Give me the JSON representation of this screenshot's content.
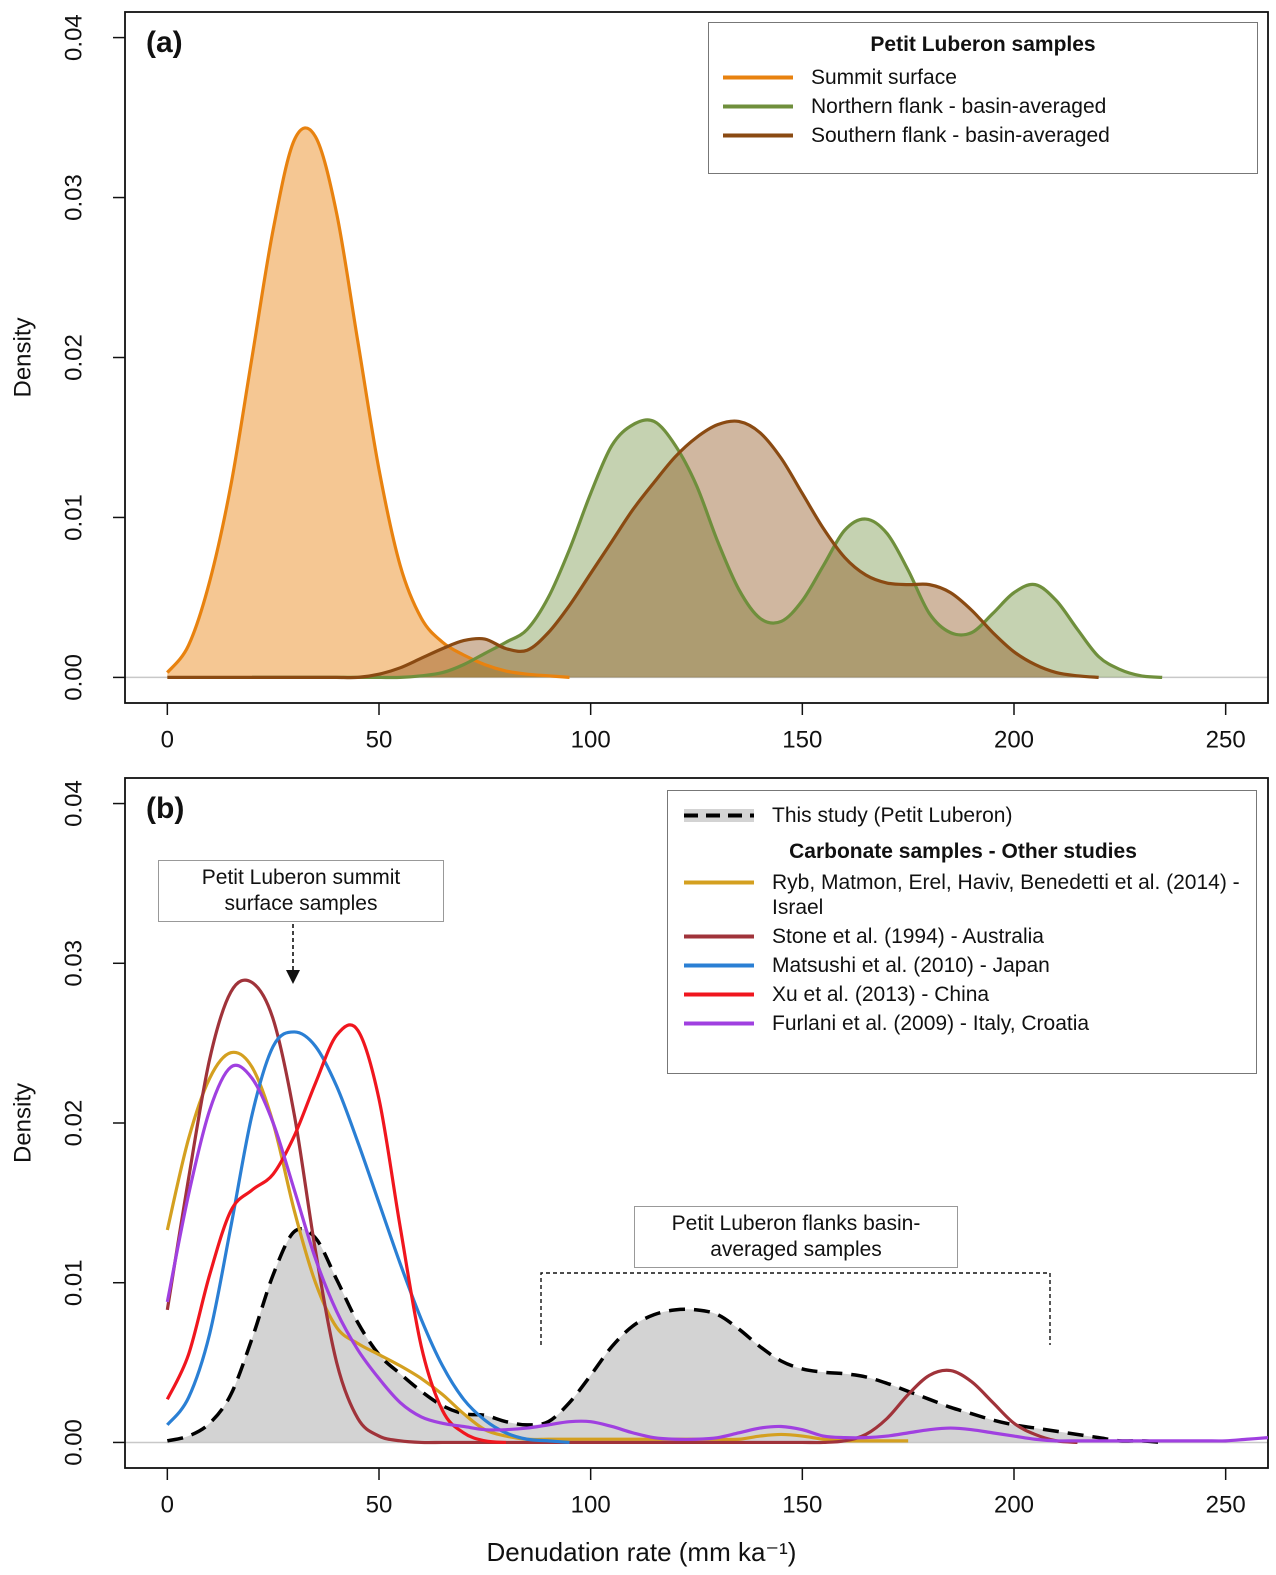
{
  "chart_data": [
    {
      "type": "area",
      "panel_label": "(a)",
      "y_label": "Density",
      "legend_title": "Petit Luberon samples",
      "x": [
        0,
        5,
        10,
        15,
        20,
        25,
        30,
        35,
        40,
        45,
        50,
        55,
        60,
        65,
        70,
        75,
        80,
        85,
        90,
        95,
        100,
        105,
        110,
        115,
        120,
        125,
        130,
        135,
        140,
        145,
        150,
        155,
        160,
        165,
        170,
        175,
        180,
        185,
        190,
        195,
        200,
        205,
        210,
        215,
        220,
        225,
        230,
        235
      ],
      "series": [
        {
          "name": "Summit surface",
          "color": "#e8820f",
          "fill": "#e8820f",
          "fill_opacity": 0.45,
          "values": [
            0.0003,
            0.002,
            0.006,
            0.012,
            0.02,
            0.028,
            0.0336,
            0.0338,
            0.029,
            0.021,
            0.013,
            0.007,
            0.0037,
            0.0022,
            0.0014,
            0.0008,
            0.0004,
            0.0002,
            0.0001,
            0,
            null,
            null,
            null,
            null,
            null,
            null,
            null,
            null,
            null,
            null,
            null,
            null,
            null,
            null,
            null,
            null,
            null,
            null,
            null,
            null,
            null,
            null,
            null,
            null,
            null,
            null,
            null,
            null
          ]
        },
        {
          "name": "Northern flank - basin-averaged",
          "color": "#6f8f3c",
          "fill": "#6f8f3c",
          "fill_opacity": 0.4,
          "values": [
            null,
            null,
            null,
            null,
            0,
            0,
            0,
            0,
            0,
            0,
            0,
            0,
            0.0001,
            0.0003,
            0.0008,
            0.0015,
            0.0022,
            0.003,
            0.005,
            0.008,
            0.0115,
            0.0145,
            0.0158,
            0.016,
            0.0145,
            0.012,
            0.0085,
            0.0055,
            0.0037,
            0.0035,
            0.0048,
            0.007,
            0.0092,
            0.0099,
            0.009,
            0.0067,
            0.004,
            0.0028,
            0.0028,
            0.004,
            0.0053,
            0.0058,
            0.0048,
            0.003,
            0.0013,
            0.0005,
            0.0001,
            0
          ]
        },
        {
          "name": "Southern flank - basin-averaged",
          "color": "#8a4a12",
          "fill": "#8a4a12",
          "fill_opacity": 0.4,
          "values": [
            0,
            0,
            0,
            0,
            0,
            0,
            0,
            0,
            0,
            0,
            0.0002,
            0.0006,
            0.0012,
            0.0018,
            0.0023,
            0.0024,
            0.0018,
            0.0017,
            0.0028,
            0.0045,
            0.0065,
            0.0085,
            0.0105,
            0.0122,
            0.0138,
            0.015,
            0.0158,
            0.016,
            0.0153,
            0.0137,
            0.0115,
            0.0093,
            0.0075,
            0.0064,
            0.0059,
            0.0058,
            0.0058,
            0.0053,
            0.0042,
            0.0028,
            0.0016,
            0.0008,
            0.0003,
            0.0001,
            0,
            null,
            null,
            null
          ]
        }
      ],
      "xlim": [
        -10,
        260
      ],
      "ylim": [
        -0.0016,
        0.0416
      ],
      "xticks": [
        0,
        50,
        100,
        150,
        200,
        250
      ],
      "yticks": [
        {
          "value": 0,
          "label": "0.00"
        },
        0.01,
        0.02,
        0.03,
        0.04
      ]
    },
    {
      "type": "area",
      "panel_label": "(b)",
      "y_label": "Density",
      "x_label": "Denudation rate (mm ka⁻¹)",
      "legend_group_title": "Carbonate samples - Other studies",
      "x": [
        0,
        5,
        10,
        15,
        20,
        25,
        30,
        35,
        40,
        45,
        50,
        55,
        60,
        65,
        70,
        75,
        80,
        85,
        90,
        95,
        100,
        105,
        110,
        115,
        120,
        125,
        130,
        135,
        140,
        145,
        150,
        155,
        160,
        165,
        170,
        175,
        180,
        185,
        190,
        195,
        200,
        205,
        210,
        215,
        220,
        225,
        230,
        235,
        240,
        245,
        250,
        255,
        260
      ],
      "series": [
        {
          "name": "This study (Petit Luberon)",
          "color": "#000000",
          "dashed": true,
          "fill": "#c8c8c8",
          "fill_opacity": 0.8,
          "values": [
            0.0001,
            0.0004,
            0.0012,
            0.003,
            0.0065,
            0.0105,
            0.0132,
            0.0128,
            0.0102,
            0.0075,
            0.0055,
            0.0043,
            0.0032,
            0.0023,
            0.0018,
            0.0017,
            0.0013,
            0.0011,
            0.0013,
            0.0025,
            0.0042,
            0.006,
            0.0073,
            0.008,
            0.0083,
            0.0083,
            0.008,
            0.0071,
            0.006,
            0.0051,
            0.0046,
            0.0044,
            0.0043,
            0.0041,
            0.0037,
            0.0032,
            0.0027,
            0.0022,
            0.0018,
            0.0014,
            0.0011,
            0.0009,
            0.0007,
            0.0005,
            0.0003,
            0.0001,
            0.0001,
            0,
            null,
            null,
            null,
            null,
            null
          ]
        },
        {
          "name": "Ryb, Matmon, Erel, Haviv, Benedetti et al. (2014) - Israel",
          "color": "#d4a020",
          "values": [
            0.0133,
            0.019,
            0.0228,
            0.0244,
            0.0235,
            0.02,
            0.0145,
            0.01,
            0.0072,
            0.0062,
            0.0055,
            0.0048,
            0.004,
            0.003,
            0.0018,
            0.0008,
            0.0004,
            0.0002,
            0.0002,
            0.0002,
            0.0002,
            0.0002,
            0.0002,
            0.0002,
            0.0002,
            0.0002,
            0.0002,
            0.0002,
            0.0004,
            0.0005,
            0.0004,
            0.0002,
            0.0001,
            0.0001,
            0.0001,
            0.0001,
            null,
            null,
            null,
            null,
            null,
            null,
            null,
            null,
            null,
            null,
            null,
            null,
            null,
            null,
            null,
            null,
            null
          ]
        },
        {
          "name": "Stone et al. (1994) - Australia",
          "color": "#a0333a",
          "values": [
            0.0083,
            0.0165,
            0.024,
            0.0282,
            0.0288,
            0.0265,
            0.0205,
            0.012,
            0.005,
            0.0015,
            0.0004,
            0.0001,
            0,
            0,
            0,
            0,
            0,
            0,
            0,
            0,
            0,
            0,
            0,
            0,
            0,
            0,
            0,
            0,
            0,
            0,
            0,
            0,
            0.0001,
            0.0005,
            0.0015,
            0.003,
            0.0042,
            0.0045,
            0.0038,
            0.0025,
            0.0012,
            0.0005,
            0.0001,
            0,
            null,
            null,
            null,
            null,
            null,
            null,
            null,
            null,
            null
          ]
        },
        {
          "name": "Matsushi et al. (2010) - Japan",
          "color": "#2a7fd4",
          "values": [
            0.0011,
            0.0028,
            0.0068,
            0.0135,
            0.0205,
            0.0248,
            0.0257,
            0.0248,
            0.0223,
            0.0188,
            0.015,
            0.0112,
            0.0077,
            0.0048,
            0.0027,
            0.0014,
            0.0006,
            0.0002,
            0.0001,
            0,
            null,
            null,
            null,
            null,
            null,
            null,
            null,
            null,
            null,
            null,
            null,
            null,
            null,
            null,
            null,
            null,
            null,
            null,
            null,
            null,
            null,
            null,
            null,
            null,
            null,
            null,
            null,
            null,
            null,
            null,
            null,
            null,
            null
          ]
        },
        {
          "name": "Xu et al. (2013) - China",
          "color": "#f0161e",
          "values": [
            0.0027,
            0.0055,
            0.0105,
            0.0145,
            0.0158,
            0.0168,
            0.0192,
            0.0225,
            0.0255,
            0.0258,
            0.0215,
            0.0135,
            0.006,
            0.002,
            0.0006,
            0.0001,
            0,
            null,
            null,
            null,
            null,
            null,
            null,
            null,
            null,
            null,
            null,
            null,
            null,
            null,
            null,
            null,
            null,
            null,
            null,
            null,
            null,
            null,
            null,
            null,
            null,
            null,
            null,
            null,
            null,
            null,
            null,
            null,
            null,
            null,
            null,
            null,
            null
          ]
        },
        {
          "name": "Furlani et al. (2009) - Italy, Croatia",
          "color": "#a040e0",
          "values": [
            0.0088,
            0.0155,
            0.0208,
            0.0235,
            0.0228,
            0.02,
            0.0158,
            0.0115,
            0.0082,
            0.0058,
            0.004,
            0.0025,
            0.0016,
            0.0012,
            0.001,
            0.0008,
            0.0008,
            0.0009,
            0.0011,
            0.0013,
            0.0013,
            0.001,
            0.0006,
            0.0003,
            0.0002,
            0.0002,
            0.0003,
            0.0006,
            0.0009,
            0.001,
            0.0008,
            0.0004,
            0.0003,
            0.0003,
            0.0004,
            0.0006,
            0.0008,
            0.0009,
            0.0008,
            0.0006,
            0.0004,
            0.0002,
            0.0001,
            0.0001,
            0.0001,
            0.0001,
            0.0001,
            0.0001,
            0.0001,
            0.0001,
            0.0001,
            0.0002,
            0.0003
          ]
        }
      ],
      "annotations": [
        {
          "text": "Petit Luberon summit surface samples"
        },
        {
          "text": "Petit Luberon flanks basin-averaged samples"
        }
      ],
      "xlim": [
        -10,
        260
      ],
      "ylim": [
        -0.0016,
        0.0416
      ],
      "xticks": [
        0,
        50,
        100,
        150,
        200,
        250
      ],
      "yticks": [
        {
          "value": 0,
          "label": "0.00"
        },
        0.01,
        0.02,
        0.03,
        0.04
      ]
    }
  ]
}
